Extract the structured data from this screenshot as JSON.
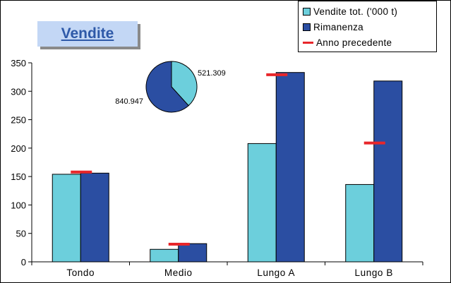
{
  "title": "Vendite",
  "colors": {
    "vendite": "#6ccfdc",
    "rimanenza": "#2b4ea2",
    "anno_precedente": "#e8262a",
    "pie_light": "#6ccfdc",
    "pie_dark": "#2b4ea2"
  },
  "legend": {
    "items": [
      {
        "label": "Vendite tot. ('000 t)",
        "kind": "box",
        "color": "#6ccfdc"
      },
      {
        "label": "Rimanenza",
        "kind": "box",
        "color": "#2b4ea2"
      },
      {
        "label": "Anno precedente",
        "kind": "line",
        "color": "#e8262a"
      }
    ]
  },
  "chart_data": [
    {
      "type": "bar",
      "categories": [
        "Tondo",
        "Medio",
        "Lungo A",
        "Lungo B"
      ],
      "series": [
        {
          "name": "Vendite tot. ('000 t)",
          "values": [
            154,
            22,
            208,
            136
          ]
        },
        {
          "name": "Rimanenza",
          "values": [
            156,
            32,
            333,
            318
          ]
        }
      ],
      "markers": {
        "name": "Anno precedente",
        "values": [
          158,
          31,
          329,
          209
        ]
      },
      "yticks": [
        0,
        50,
        100,
        150,
        200,
        250,
        300,
        350
      ],
      "ylim": [
        0,
        350
      ],
      "xlabel": "",
      "ylabel": "",
      "legend_position": "top-right"
    },
    {
      "type": "pie",
      "labels": [
        "521.309",
        "840.947"
      ],
      "values": [
        521.309,
        840.947
      ]
    }
  ]
}
